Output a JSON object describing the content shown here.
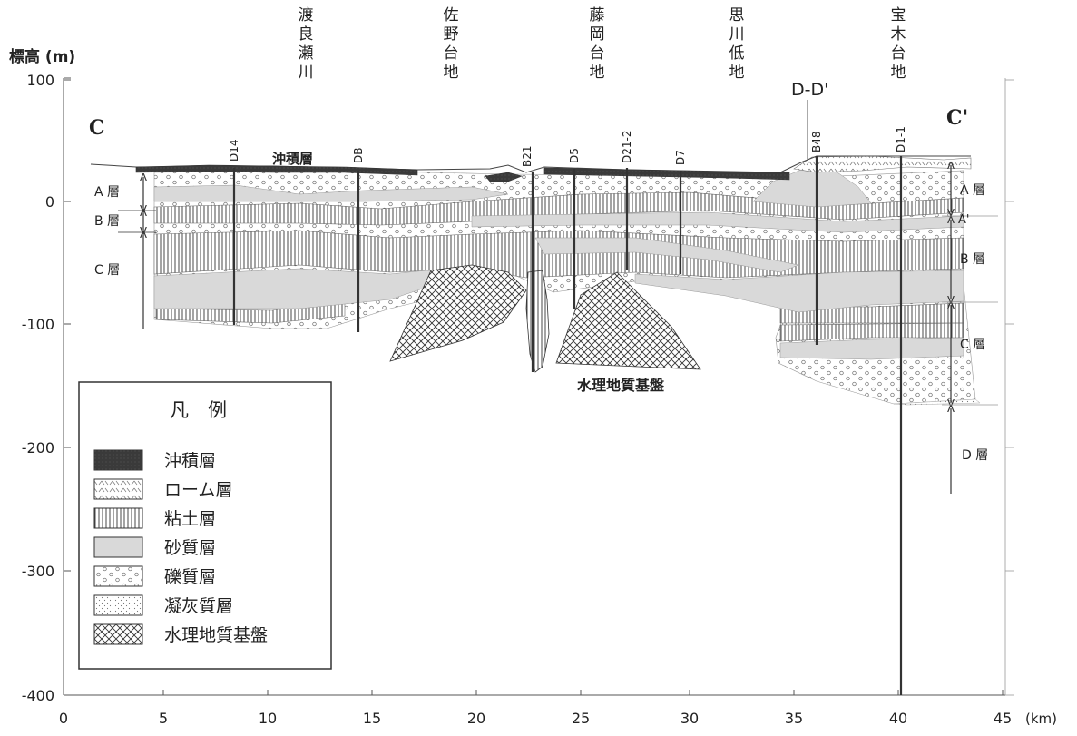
{
  "axes": {
    "y_title": "標高 (m)",
    "x_unit": "(km)",
    "y_ticks": [
      "100",
      "0",
      "-100",
      "-200",
      "-300",
      "-400"
    ],
    "x_ticks": [
      "0",
      "5",
      "10",
      "15",
      "20",
      "25",
      "30",
      "35",
      "40",
      "45"
    ]
  },
  "section": {
    "start_label": "C",
    "end_label": "C'",
    "crossing_label": "D-D'"
  },
  "places": [
    {
      "id": "watarase",
      "text": "渡良瀬川"
    },
    {
      "id": "sano",
      "text": "佐野台地"
    },
    {
      "id": "fujioka",
      "text": "藤岡台地"
    },
    {
      "id": "omoigawa",
      "text": "思川低地"
    },
    {
      "id": "hoki",
      "text": "宝木台地"
    }
  ],
  "boreholes": [
    "D14",
    "DB",
    "B21",
    "D5",
    "D21-2",
    "D7",
    "B48",
    "D1-1"
  ],
  "units_left": [
    "A 層",
    "B 層",
    "C 層"
  ],
  "units_right": [
    "A 層",
    "A'",
    "B 層",
    "C 層",
    "D 層"
  ],
  "annotations": {
    "alluvium": "沖積層",
    "basement": "水理地質基盤"
  },
  "legend": {
    "title": "凡　例",
    "items": [
      {
        "label": "沖積層",
        "pattern": "alluvium"
      },
      {
        "label": "ローム層",
        "pattern": "loam"
      },
      {
        "label": "粘土層",
        "pattern": "clay"
      },
      {
        "label": "砂質層",
        "pattern": "sand"
      },
      {
        "label": "礫質層",
        "pattern": "gravel"
      },
      {
        "label": "凝灰質層",
        "pattern": "tuff"
      },
      {
        "label": "水理地質基盤",
        "pattern": "basement"
      }
    ]
  },
  "colors": {
    "alluvium": "#333333",
    "sand": "#d9d9d9",
    "line": "#333333",
    "axis": "#555555"
  }
}
